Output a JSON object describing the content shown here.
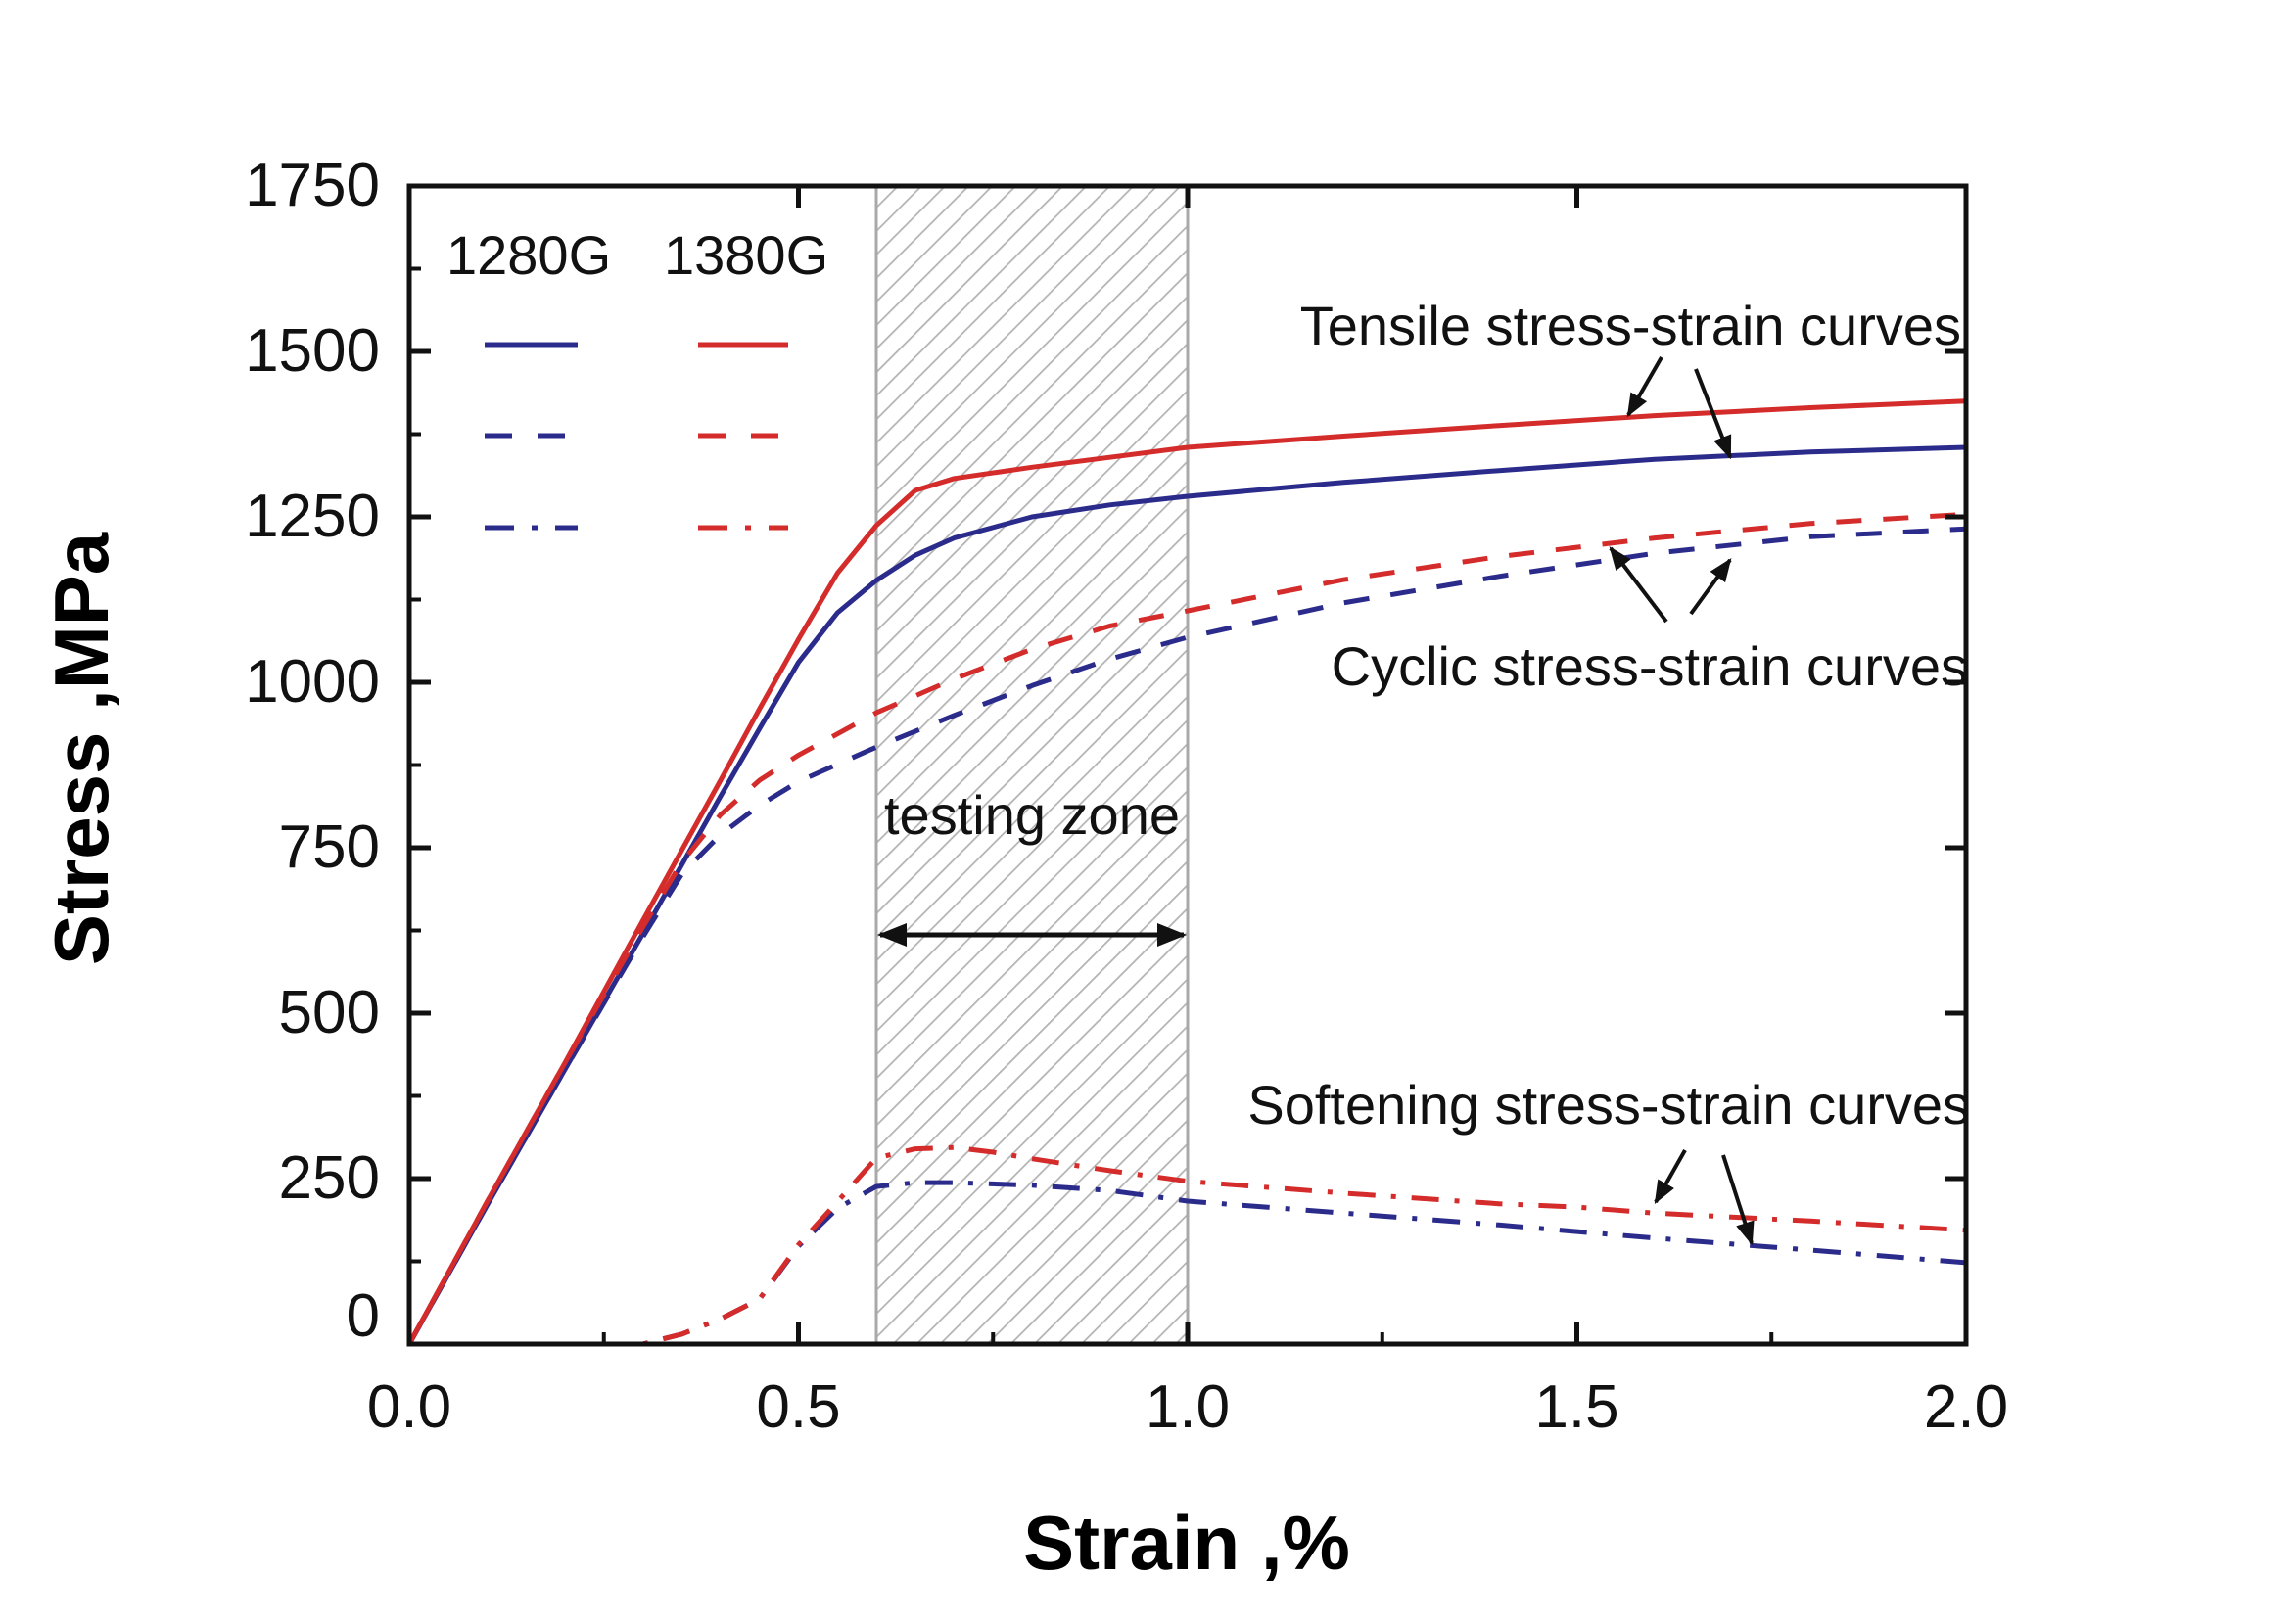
{
  "chart_data": {
    "type": "line",
    "title": "",
    "xlabel": "Strain ,%",
    "ylabel": "Stress ,MPa",
    "xlim": [
      0.0,
      2.0
    ],
    "ylim": [
      0,
      1750
    ],
    "xticks": [
      "0.0",
      "0.5",
      "1.0",
      "1.5",
      "2.0"
    ],
    "xtick_values": [
      0.0,
      0.5,
      1.0,
      1.5,
      2.0
    ],
    "xminor_step": 0.25,
    "yticks": [
      "0",
      "250",
      "500",
      "750",
      "1000",
      "1250",
      "1500",
      "1750"
    ],
    "ytick_values": [
      0,
      250,
      500,
      750,
      1000,
      1250,
      1500,
      1750
    ],
    "yminor_step": 125,
    "grid": false,
    "colors": {
      "1280G": "#2b2b8c",
      "1380G": "#d42b2b",
      "axis": "#111111",
      "zone": "#a9a9a9"
    },
    "legend": {
      "placement": "top-left",
      "columns": [
        "1280G",
        "1380G"
      ],
      "rows": [
        {
          "style": "solid",
          "meaning": "Tensile stress-strain curves"
        },
        {
          "style": "dashed",
          "meaning": "Cyclic stress-strain curves"
        },
        {
          "style": "dashdot",
          "meaning": "Softening stress-strain curves"
        }
      ]
    },
    "shaded_region": {
      "label": "testing zone",
      "x_start": 0.6,
      "x_end": 1.0,
      "pattern": "diagonal-hatch",
      "arrow_y": 700
    },
    "annotations": [
      {
        "text": "Tensile stress-strain curves",
        "x": 1.5,
        "y": 1480,
        "points_to": [
          [
            1.5,
            1392
          ],
          [
            1.68,
            1352
          ]
        ]
      },
      {
        "text": "Cyclic stress-strain curves",
        "x": 1.5,
        "y": 1040,
        "points_to": [
          [
            1.53,
            1205
          ],
          [
            1.69,
            1180
          ]
        ]
      },
      {
        "text": "Softening stress-strain curves",
        "x": 1.5,
        "y": 370,
        "points_to": [
          [
            1.59,
            210
          ],
          [
            1.72,
            155
          ]
        ]
      }
    ],
    "series": [
      {
        "name": "1280G tensile",
        "material": "1280G",
        "style": "solid",
        "x": [
          0.0,
          0.1,
          0.2,
          0.3,
          0.4,
          0.45,
          0.5,
          0.55,
          0.6,
          0.65,
          0.7,
          0.8,
          0.9,
          1.0,
          1.2,
          1.4,
          1.6,
          1.8,
          2.0
        ],
        "y": [
          0,
          210,
          415,
          620,
          828,
          930,
          1030,
          1105,
          1154,
          1192,
          1218,
          1250,
          1268,
          1281,
          1302,
          1320,
          1337,
          1348,
          1355
        ]
      },
      {
        "name": "1380G tensile",
        "material": "1380G",
        "style": "solid",
        "x": [
          0.0,
          0.1,
          0.2,
          0.3,
          0.4,
          0.45,
          0.5,
          0.55,
          0.6,
          0.65,
          0.7,
          0.8,
          0.9,
          1.0,
          1.2,
          1.4,
          1.6,
          1.8,
          2.0
        ],
        "y": [
          0,
          215,
          425,
          640,
          852,
          960,
          1065,
          1165,
          1237,
          1290,
          1308,
          1325,
          1340,
          1355,
          1372,
          1388,
          1403,
          1415,
          1425
        ]
      },
      {
        "name": "1280G cyclic",
        "material": "1280G",
        "style": "dashed",
        "x": [
          0.0,
          0.1,
          0.2,
          0.3,
          0.35,
          0.4,
          0.45,
          0.5,
          0.6,
          0.7,
          0.8,
          0.9,
          1.0,
          1.2,
          1.4,
          1.6,
          1.8,
          2.0
        ],
        "y": [
          0,
          210,
          415,
          615,
          710,
          770,
          814,
          850,
          902,
          950,
          995,
          1035,
          1068,
          1120,
          1160,
          1195,
          1220,
          1232
        ]
      },
      {
        "name": "1380G cyclic",
        "material": "1380G",
        "style": "dashed",
        "x": [
          0.0,
          0.1,
          0.2,
          0.3,
          0.35,
          0.4,
          0.45,
          0.5,
          0.6,
          0.7,
          0.8,
          0.9,
          1.0,
          1.2,
          1.4,
          1.6,
          1.8,
          2.0
        ],
        "y": [
          0,
          215,
          425,
          630,
          728,
          800,
          852,
          890,
          954,
          1005,
          1050,
          1085,
          1108,
          1155,
          1190,
          1218,
          1240,
          1254
        ]
      },
      {
        "name": "1280G softening",
        "material": "1280G",
        "style": "dashdot",
        "x": [
          0.0,
          0.3,
          0.35,
          0.4,
          0.45,
          0.5,
          0.55,
          0.6,
          0.65,
          0.7,
          0.8,
          0.9,
          1.0,
          1.2,
          1.4,
          1.5,
          1.6,
          1.8,
          2.0
        ],
        "y": [
          0,
          0,
          15,
          38,
          68,
          148,
          205,
          238,
          244,
          244,
          240,
          232,
          216,
          198,
          180,
          170,
          160,
          142,
          123
        ]
      },
      {
        "name": "1380G softening",
        "material": "1380G",
        "style": "dashdot",
        "x": [
          0.0,
          0.3,
          0.35,
          0.4,
          0.45,
          0.5,
          0.55,
          0.6,
          0.65,
          0.7,
          0.75,
          0.8,
          0.9,
          1.0,
          1.2,
          1.4,
          1.5,
          1.6,
          1.8,
          2.0
        ],
        "y": [
          0,
          0,
          15,
          38,
          68,
          150,
          215,
          281,
          295,
          297,
          290,
          280,
          262,
          246,
          228,
          212,
          207,
          198,
          186,
          172
        ]
      }
    ]
  }
}
